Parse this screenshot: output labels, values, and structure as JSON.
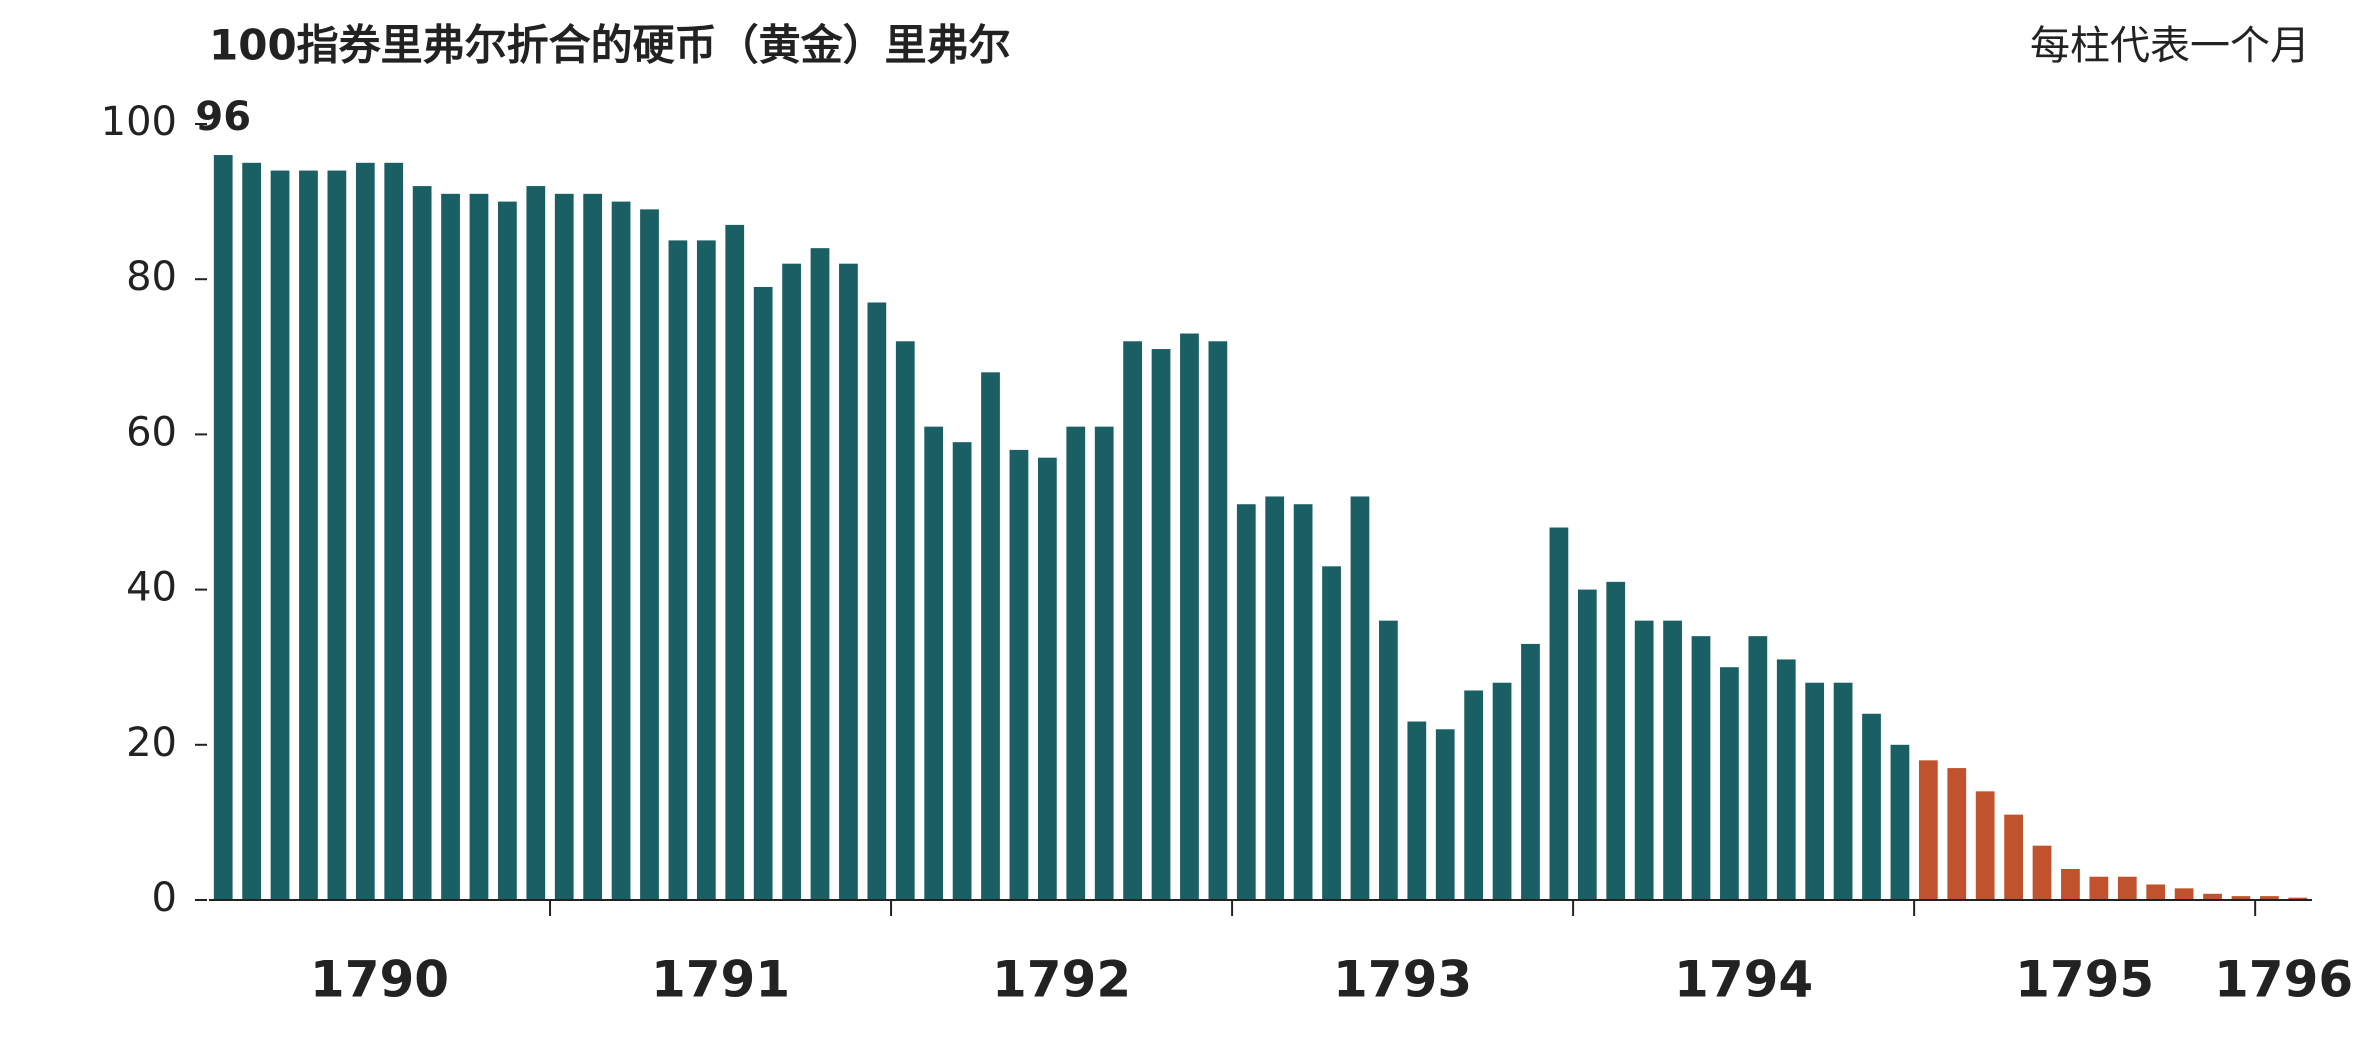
{
  "chart_data": {
    "type": "bar",
    "title": "100指券里弗尔折合的硬币（黄金）里弗尔",
    "subtitle": "每柱代表一个月",
    "ylim": [
      0,
      100
    ],
    "yticks": [
      0,
      20,
      40,
      60,
      80,
      100
    ],
    "label_first_bar": true,
    "groups": [
      {
        "label": "1790",
        "color": "#1a5f63",
        "values": [
          96,
          95,
          94,
          94,
          94,
          95,
          95,
          92,
          91,
          91,
          90,
          92
        ]
      },
      {
        "label": "1791",
        "color": "#1a5f63",
        "values": [
          91,
          91,
          90,
          89,
          85,
          85,
          87,
          79,
          82,
          84,
          82,
          77
        ]
      },
      {
        "label": "1792",
        "color": "#1a5f63",
        "values": [
          72,
          61,
          59,
          68,
          58,
          57,
          61,
          61,
          72,
          71,
          73,
          72
        ]
      },
      {
        "label": "1793",
        "color": "#1a5f63",
        "values": [
          51,
          52,
          51,
          43,
          52,
          36,
          23,
          22,
          27,
          28,
          33,
          48
        ]
      },
      {
        "label": "1794",
        "color": "#1a5f63",
        "values": [
          40,
          41,
          36,
          36,
          34,
          30,
          34,
          31,
          28,
          28,
          24,
          20
        ]
      },
      {
        "label": "1795",
        "color": "#c0522d",
        "values": [
          18,
          17,
          14,
          11,
          7,
          4,
          3,
          3,
          2,
          1.5,
          0.8,
          0.5
        ]
      },
      {
        "label": "1796",
        "color": "#c0522d",
        "values": [
          0.5,
          0.3
        ]
      }
    ]
  }
}
